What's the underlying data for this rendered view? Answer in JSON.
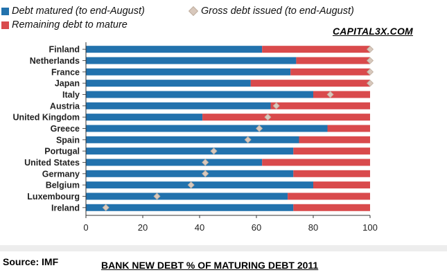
{
  "chart_data": {
    "type": "bar",
    "orientation": "horizontal",
    "stacked": true,
    "categories": [
      "Finland",
      "Netherlands",
      "France",
      "Japan",
      "Italy",
      "Austria",
      "United Kingdom",
      "Greece",
      "Spain",
      "Portugal",
      "United States",
      "Germany",
      "Belgium",
      "Luxembourg",
      "Ireland"
    ],
    "series": [
      {
        "name": "Debt matured (to end-August)",
        "color": "#2272ad",
        "values": [
          62,
          74,
          72,
          58,
          80,
          65,
          41,
          85,
          75,
          73,
          62,
          73,
          80,
          71,
          73
        ]
      },
      {
        "name": "Remaining debt to mature",
        "color": "#d94a4c",
        "values": [
          38,
          26,
          28,
          42,
          20,
          35,
          59,
          15,
          25,
          27,
          38,
          27,
          20,
          29,
          27
        ]
      }
    ],
    "markers": {
      "name": "Gross debt issued (to end-August)",
      "color": "#d8c8bc",
      "values": [
        100,
        100,
        100,
        100,
        86,
        67,
        64,
        61,
        57,
        45,
        42,
        42,
        37,
        25,
        7
      ]
    },
    "xlim": [
      0,
      100
    ],
    "xticks": [
      "0",
      "20",
      "40",
      "60",
      "80",
      "100"
    ],
    "legend_position": "top",
    "grid": false
  },
  "watermark": "CAPITAL3X.COM",
  "source": "Source: IMF",
  "caption": "BANK NEW DEBT % OF MATURING DEBT 2011"
}
